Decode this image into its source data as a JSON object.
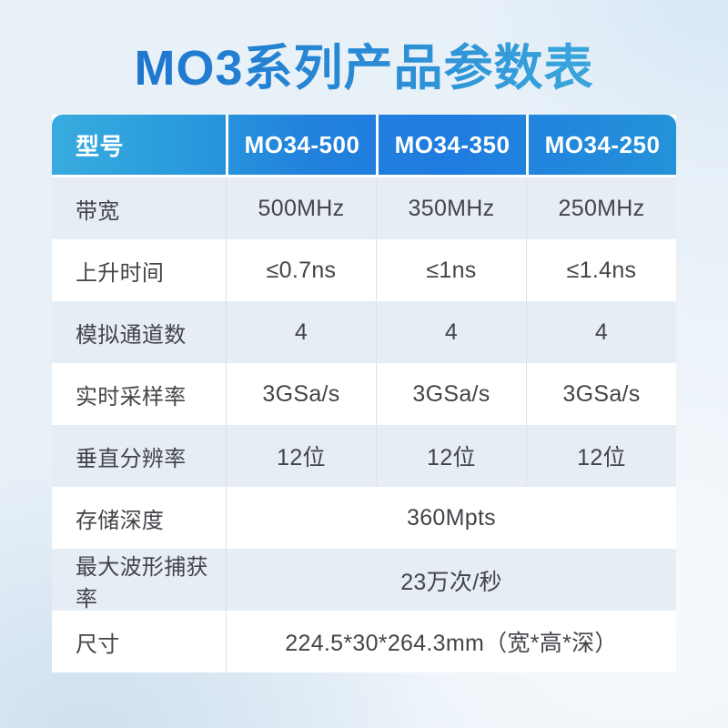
{
  "title": "MO3系列产品参数表",
  "colors": {
    "title_gradient_start": "#1e76cf",
    "title_gradient_end": "#3aa6dd",
    "header_bg_left": "#38abdf",
    "header_bg_right": "#2492d9",
    "header_text": "#ffffff",
    "row_tint": "#e7edf4",
    "row_white": "#ffffff",
    "cell_text": "#424549",
    "page_bg": "#e9f1f8"
  },
  "table": {
    "header": [
      "型号",
      "MO34-500",
      "MO34-350",
      "MO34-250"
    ],
    "rows": [
      {
        "label": "带宽",
        "values": [
          "500MHz",
          "350MHz",
          "250MHz"
        ]
      },
      {
        "label": "上升时间",
        "values": [
          "≤0.7ns",
          "≤1ns",
          "≤1.4ns"
        ]
      },
      {
        "label": "模拟通道数",
        "values": [
          "4",
          "4",
          "4"
        ]
      },
      {
        "label": "实时采样率",
        "values": [
          "3GSa/s",
          "3GSa/s",
          "3GSa/s"
        ]
      },
      {
        "label": "垂直分辨率",
        "values": [
          "12位",
          "12位",
          "12位"
        ]
      },
      {
        "label": "存储深度",
        "values": [
          "360Mpts"
        ],
        "span": true
      },
      {
        "label": "最大波形捕获率",
        "values": [
          "23万次/秒"
        ],
        "span": true
      },
      {
        "label": "尺寸",
        "values": [
          "224.5*30*264.3mm（宽*高*深）"
        ],
        "span": true
      }
    ]
  }
}
